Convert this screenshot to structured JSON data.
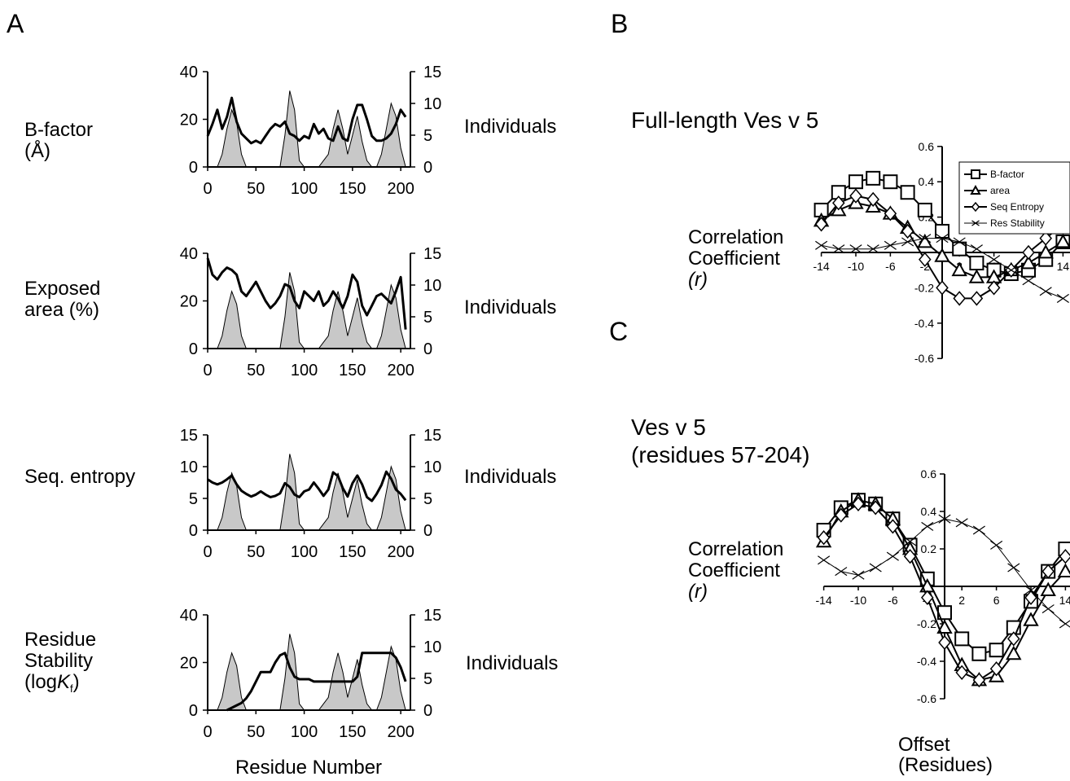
{
  "panel_labels": {
    "a": "A",
    "b": "B",
    "c": "C"
  },
  "panel_a": {
    "right_axis_label": "Individuals",
    "xlabel": "Residue Number",
    "plots": [
      {
        "label_lines": [
          "B-factor",
          "(Å)"
        ],
        "left_ticks": [
          "0",
          "20",
          "40"
        ],
        "right_ticks": [
          "0",
          "5",
          "10",
          "15"
        ],
        "x_ticks": [
          "0",
          "50",
          "100",
          "150",
          "200"
        ]
      },
      {
        "label_lines": [
          "Exposed",
          "area (%)"
        ],
        "left_ticks": [
          "0",
          "20",
          "40"
        ],
        "right_ticks": [
          "0",
          "5",
          "10",
          "15"
        ],
        "x_ticks": [
          "0",
          "50",
          "100",
          "150",
          "200"
        ]
      },
      {
        "label_lines": [
          "Seq. entropy"
        ],
        "left_ticks": [
          "0",
          "5",
          "10",
          "15"
        ],
        "right_ticks": [
          "0",
          "5",
          "10",
          "15"
        ],
        "x_ticks": [
          "0",
          "50",
          "100",
          "150",
          "200"
        ]
      },
      {
        "label_lines": [
          "Residue",
          "Stability",
          "(logKf)"
        ],
        "left_ticks": [
          "0",
          "20",
          "40"
        ],
        "right_ticks": [
          "0",
          "5",
          "10",
          "15"
        ],
        "x_ticks": [
          "0",
          "50",
          "100",
          "150",
          "200"
        ]
      }
    ]
  },
  "panel_b": {
    "title": "Full-length Ves v 5",
    "ylabel_lines": [
      "Correlation",
      "Coefficient",
      "(r)"
    ],
    "y_ticks": [
      "0.6",
      "0.4",
      "0.2",
      "-0.2",
      "-0.4",
      "-0.6"
    ],
    "x_ticks": [
      "-14",
      "-10",
      "-6",
      "-2",
      "2",
      "6",
      "10",
      "14"
    ],
    "legend": [
      "B-factor",
      "area",
      "Seq Entropy",
      "Res Stability"
    ]
  },
  "panel_c": {
    "title_lines": [
      "Ves v 5",
      "(residues 57-204)"
    ],
    "ylabel_lines": [
      "Correlation",
      "Coefficient",
      "(r)"
    ],
    "y_ticks": [
      "0.6",
      "0.4",
      "0.2",
      "-0.2",
      "-0.4",
      "-0.6"
    ],
    "x_ticks": [
      "-14",
      "-10",
      "-6",
      "-2",
      "2",
      "6",
      "10",
      "14"
    ],
    "xlabel_lines": [
      "Offset",
      "(Residues)"
    ]
  },
  "chart_data": [
    {
      "type": "area",
      "panel": "A",
      "x": [
        0,
        5,
        10,
        15,
        20,
        25,
        30,
        35,
        40,
        45,
        50,
        55,
        60,
        65,
        70,
        75,
        80,
        85,
        90,
        95,
        100,
        105,
        110,
        115,
        120,
        125,
        130,
        135,
        140,
        145,
        150,
        155,
        160,
        165,
        170,
        175,
        180,
        185,
        190,
        195,
        200,
        205
      ],
      "individuals": [
        0,
        0,
        0,
        2,
        6,
        9,
        7,
        2,
        0,
        0,
        0,
        0,
        0,
        0,
        0,
        0,
        5,
        12,
        9,
        1,
        0,
        0,
        0,
        0,
        1,
        2,
        6,
        9,
        6,
        2,
        5,
        8,
        4,
        1,
        0,
        0,
        2,
        6,
        10,
        8,
        3,
        0
      ],
      "xlim": [
        0,
        210
      ],
      "right_ylim": [
        0,
        15
      ],
      "series": [
        {
          "name": "B-factor",
          "ylim": [
            0,
            40
          ],
          "values": [
            13,
            18,
            24,
            16,
            21,
            29,
            19,
            14,
            12,
            10,
            11,
            10,
            13,
            16,
            18,
            17,
            19,
            14,
            13,
            11,
            13,
            12,
            18,
            14,
            16,
            12,
            11,
            17,
            12,
            11,
            20,
            26,
            26,
            20,
            13,
            11,
            11,
            12,
            14,
            18,
            24,
            21
          ]
        },
        {
          "name": "Exposed area (%)",
          "ylim": [
            0,
            40
          ],
          "values": [
            38,
            31,
            29,
            32,
            34,
            33,
            31,
            24,
            22,
            25,
            28,
            24,
            20,
            17,
            19,
            22,
            27,
            26,
            20,
            17,
            24,
            22,
            20,
            24,
            18,
            20,
            24,
            21,
            17,
            22,
            31,
            28,
            18,
            14,
            18,
            22,
            23,
            21,
            19,
            24,
            30,
            8
          ]
        },
        {
          "name": "Seq. entropy",
          "ylim": [
            0,
            15
          ],
          "values": [
            8,
            7.5,
            7.2,
            7.5,
            8,
            8.6,
            7.2,
            6.2,
            5.7,
            5.3,
            5.6,
            6.1,
            5.6,
            5.2,
            5.4,
            5.8,
            7.4,
            6.8,
            5.6,
            5.2,
            6.1,
            6.4,
            7.5,
            6.5,
            5.4,
            6.4,
            9.1,
            8.5,
            6.6,
            5.3,
            7.4,
            8.6,
            7.2,
            5.2,
            4.6,
            5.7,
            7.1,
            9.2,
            8.1,
            6.4,
            5.7,
            4.7
          ]
        },
        {
          "name": "Residue Stability (logKf)",
          "ylim": [
            0,
            40
          ],
          "values": [
            null,
            null,
            null,
            null,
            0,
            1,
            2,
            3,
            5,
            8,
            12,
            16,
            16,
            16,
            20,
            23,
            24,
            18,
            14,
            13,
            13,
            13,
            12,
            12,
            12,
            12,
            12,
            12,
            12,
            12,
            12,
            14,
            24,
            24,
            24,
            24,
            24,
            24,
            24,
            22,
            18,
            12
          ]
        }
      ]
    },
    {
      "type": "line",
      "panel": "B",
      "title": "Full-length Ves v 5",
      "x": [
        -14,
        -12,
        -10,
        -8,
        -6,
        -4,
        -2,
        0,
        2,
        4,
        6,
        8,
        10,
        12,
        14
      ],
      "ylim": [
        -0.6,
        0.6
      ],
      "series": [
        {
          "name": "B-factor",
          "values": [
            0.24,
            0.34,
            0.4,
            0.42,
            0.4,
            0.34,
            0.24,
            0.12,
            0.02,
            -0.06,
            -0.1,
            -0.12,
            -0.1,
            -0.04,
            0.06
          ]
        },
        {
          "name": "area",
          "values": [
            0.18,
            0.24,
            0.28,
            0.26,
            0.22,
            0.14,
            0.06,
            -0.02,
            -0.1,
            -0.14,
            -0.14,
            -0.1,
            -0.06,
            0.0,
            0.06
          ]
        },
        {
          "name": "Seq Entropy",
          "values": [
            0.16,
            0.28,
            0.32,
            0.3,
            0.22,
            0.12,
            -0.04,
            -0.2,
            -0.26,
            -0.26,
            -0.2,
            -0.1,
            0.0,
            0.08,
            0.16
          ]
        },
        {
          "name": "Res Stability",
          "values": [
            0.04,
            0.02,
            0.02,
            0.02,
            0.04,
            0.06,
            0.08,
            0.08,
            0.06,
            0.02,
            -0.04,
            -0.1,
            -0.16,
            -0.22,
            -0.26
          ]
        }
      ]
    },
    {
      "type": "line",
      "panel": "C",
      "title": "Ves v 5 (residues 57-204)",
      "x": [
        -14,
        -12,
        -10,
        -8,
        -6,
        -4,
        -2,
        0,
        2,
        4,
        6,
        8,
        10,
        12,
        14
      ],
      "ylim": [
        -0.6,
        0.6
      ],
      "series": [
        {
          "name": "B-factor",
          "values": [
            0.3,
            0.42,
            0.46,
            0.44,
            0.36,
            0.22,
            0.04,
            -0.14,
            -0.28,
            -0.36,
            -0.34,
            -0.22,
            -0.08,
            0.08,
            0.2
          ]
        },
        {
          "name": "area",
          "values": [
            0.24,
            0.4,
            0.46,
            0.44,
            0.36,
            0.2,
            0.0,
            -0.22,
            -0.42,
            -0.5,
            -0.48,
            -0.36,
            -0.18,
            -0.02,
            0.08
          ]
        },
        {
          "name": "Seq Entropy",
          "values": [
            0.26,
            0.38,
            0.44,
            0.42,
            0.32,
            0.16,
            -0.06,
            -0.3,
            -0.46,
            -0.5,
            -0.44,
            -0.28,
            -0.06,
            0.08,
            0.16
          ]
        },
        {
          "name": "Res Stability",
          "values": [
            0.14,
            0.08,
            0.06,
            0.1,
            0.16,
            0.24,
            0.32,
            0.36,
            0.34,
            0.3,
            0.22,
            0.1,
            -0.02,
            -0.12,
            -0.2
          ]
        }
      ]
    }
  ]
}
